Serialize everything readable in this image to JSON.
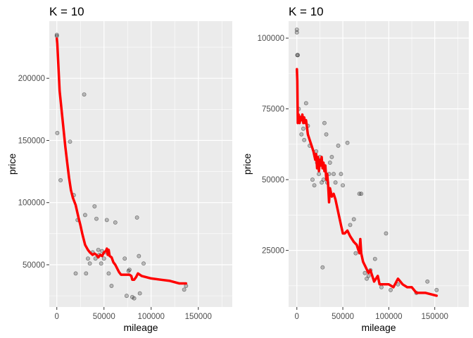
{
  "chart_data": [
    {
      "type": "scatter",
      "title": "K = 10",
      "xlabel": "mileage",
      "ylabel": "price",
      "xlim": [
        -8000,
        186000
      ],
      "ylim": [
        16000,
        246000
      ],
      "x_ticks": [
        0,
        50000,
        100000,
        150000
      ],
      "x_tick_labels": [
        "0",
        "50000",
        "100000",
        "150000"
      ],
      "y_ticks": [
        50000,
        100000,
        150000,
        200000
      ],
      "y_tick_labels": [
        "50000",
        "100000",
        "150000",
        "200000"
      ],
      "grid": true,
      "legend": "none",
      "colors": {
        "panel": "#ebebeb",
        "grid": "#ffffff",
        "points": "#000000",
        "fit": "#ff0000"
      },
      "series": [
        {
          "kind": "points",
          "x": [
            0,
            0,
            500,
            4000,
            14000,
            18000,
            20000,
            22000,
            29000,
            30000,
            31000,
            33000,
            35000,
            38000,
            40000,
            41000,
            42000,
            44000,
            45000,
            47000,
            48000,
            50000,
            52000,
            53000,
            55000,
            58000,
            62000,
            72000,
            74000,
            76000,
            77000,
            80000,
            82000,
            85000,
            87000,
            88000,
            92000,
            135000,
            137000
          ],
          "y": [
            234000,
            235000,
            156000,
            118000,
            149000,
            106000,
            43000,
            86000,
            187000,
            90000,
            43000,
            55000,
            51000,
            60000,
            97000,
            55000,
            87000,
            62000,
            58000,
            51000,
            61000,
            55000,
            60000,
            86000,
            43000,
            33000,
            84000,
            55000,
            25000,
            45000,
            46000,
            24000,
            23000,
            88000,
            57000,
            27000,
            51000,
            30000,
            33000
          ]
        },
        {
          "kind": "line",
          "x": [
            0,
            500,
            1000,
            2000,
            3000,
            5000,
            7000,
            9000,
            11000,
            13000,
            15000,
            17000,
            20000,
            23000,
            25000,
            27000,
            30000,
            33000,
            35000,
            38000,
            40000,
            42000,
            44000,
            46000,
            48000,
            50000,
            52000,
            53000,
            54000,
            55000,
            56000,
            58000,
            60000,
            62000,
            64000,
            66000,
            68000,
            70000,
            72000,
            75000,
            77000,
            79000,
            80000,
            82000,
            84000,
            86000,
            90000,
            100000,
            110000,
            120000,
            130000,
            137000
          ],
          "y": [
            232000,
            228000,
            220000,
            205000,
            190000,
            175000,
            160000,
            145000,
            132000,
            120000,
            110000,
            104000,
            98000,
            88000,
            82000,
            75000,
            66000,
            62000,
            60000,
            58000,
            59000,
            58000,
            56000,
            58000,
            57000,
            60000,
            61000,
            63000,
            58000,
            62000,
            57000,
            56000,
            52000,
            50000,
            47000,
            44000,
            42000,
            42000,
            42000,
            42000,
            42000,
            41000,
            38000,
            38000,
            40000,
            43000,
            41000,
            39000,
            38000,
            37000,
            35000,
            35000
          ]
        }
      ]
    },
    {
      "type": "scatter",
      "title": "K = 10",
      "xlabel": "mileage",
      "ylabel": "price",
      "xlim": [
        -9000,
        187000
      ],
      "ylim": [
        5000,
        106000
      ],
      "x_ticks": [
        0,
        50000,
        100000,
        150000
      ],
      "x_tick_labels": [
        "0",
        "50000",
        "100000",
        "150000"
      ],
      "y_ticks": [
        25000,
        50000,
        75000,
        100000
      ],
      "y_tick_labels": [
        "25000",
        "50000",
        "75000",
        "100000"
      ],
      "grid": true,
      "legend": "none",
      "colors": {
        "panel": "#ebebeb",
        "grid": "#ffffff",
        "points": "#000000",
        "fit": "#ff0000"
      },
      "series": [
        {
          "kind": "points",
          "x": [
            0,
            0,
            500,
            1000,
            2000,
            3000,
            4000,
            5000,
            7000,
            8000,
            10000,
            12000,
            14000,
            17000,
            19000,
            21000,
            22000,
            24000,
            25000,
            27000,
            28000,
            29000,
            30000,
            32000,
            33000,
            35000,
            36000,
            38000,
            40000,
            42000,
            45000,
            48000,
            50000,
            55000,
            58000,
            62000,
            64000,
            68000,
            70000,
            74000,
            76000,
            78000,
            80000,
            85000,
            92000,
            97000,
            102000,
            110000,
            130000,
            142000,
            152000
          ],
          "y": [
            103000,
            102000,
            94000,
            94000,
            75000,
            71000,
            72000,
            66000,
            68000,
            64000,
            77000,
            69000,
            62000,
            50000,
            48000,
            60000,
            56000,
            52000,
            58000,
            49000,
            19000,
            50000,
            70000,
            66000,
            49000,
            52000,
            56000,
            58000,
            52000,
            49000,
            62000,
            52000,
            48000,
            63000,
            34000,
            36000,
            24000,
            45000,
            45000,
            17000,
            15000,
            16000,
            18000,
            22000,
            12000,
            31000,
            11000,
            13000,
            10000,
            14000,
            11000
          ]
        },
        {
          "kind": "line",
          "x": [
            0,
            500,
            1000,
            2000,
            3000,
            4000,
            5000,
            6000,
            7000,
            8000,
            9000,
            10000,
            12000,
            14000,
            16000,
            18000,
            20000,
            21000,
            22000,
            23000,
            24000,
            25000,
            26000,
            27000,
            28000,
            29000,
            30000,
            31000,
            32000,
            33000,
            34000,
            35000,
            36000,
            38000,
            40000,
            42000,
            44000,
            46000,
            48000,
            50000,
            52000,
            55000,
            58000,
            62000,
            65000,
            68000,
            69000,
            70000,
            72000,
            75000,
            78000,
            80000,
            82000,
            84000,
            86000,
            88000,
            90000,
            95000,
            100000,
            105000,
            110000,
            115000,
            120000,
            125000,
            130000,
            140000,
            152000
          ],
          "y": [
            89000,
            85000,
            70000,
            73000,
            70000,
            72000,
            71000,
            73000,
            70000,
            72000,
            70000,
            71000,
            66000,
            64000,
            62000,
            60000,
            57000,
            59000,
            54000,
            58000,
            53000,
            57000,
            55000,
            58000,
            54000,
            56000,
            53000,
            55000,
            50000,
            52000,
            48000,
            42000,
            47000,
            44000,
            45000,
            43000,
            40000,
            37000,
            34000,
            31000,
            31000,
            32000,
            30000,
            28000,
            27000,
            24000,
            29000,
            24000,
            21000,
            19000,
            17000,
            18000,
            16000,
            14000,
            15000,
            16000,
            13000,
            13000,
            13000,
            12000,
            15000,
            13000,
            12000,
            12000,
            10000,
            10000,
            9000
          ]
        }
      ]
    }
  ]
}
